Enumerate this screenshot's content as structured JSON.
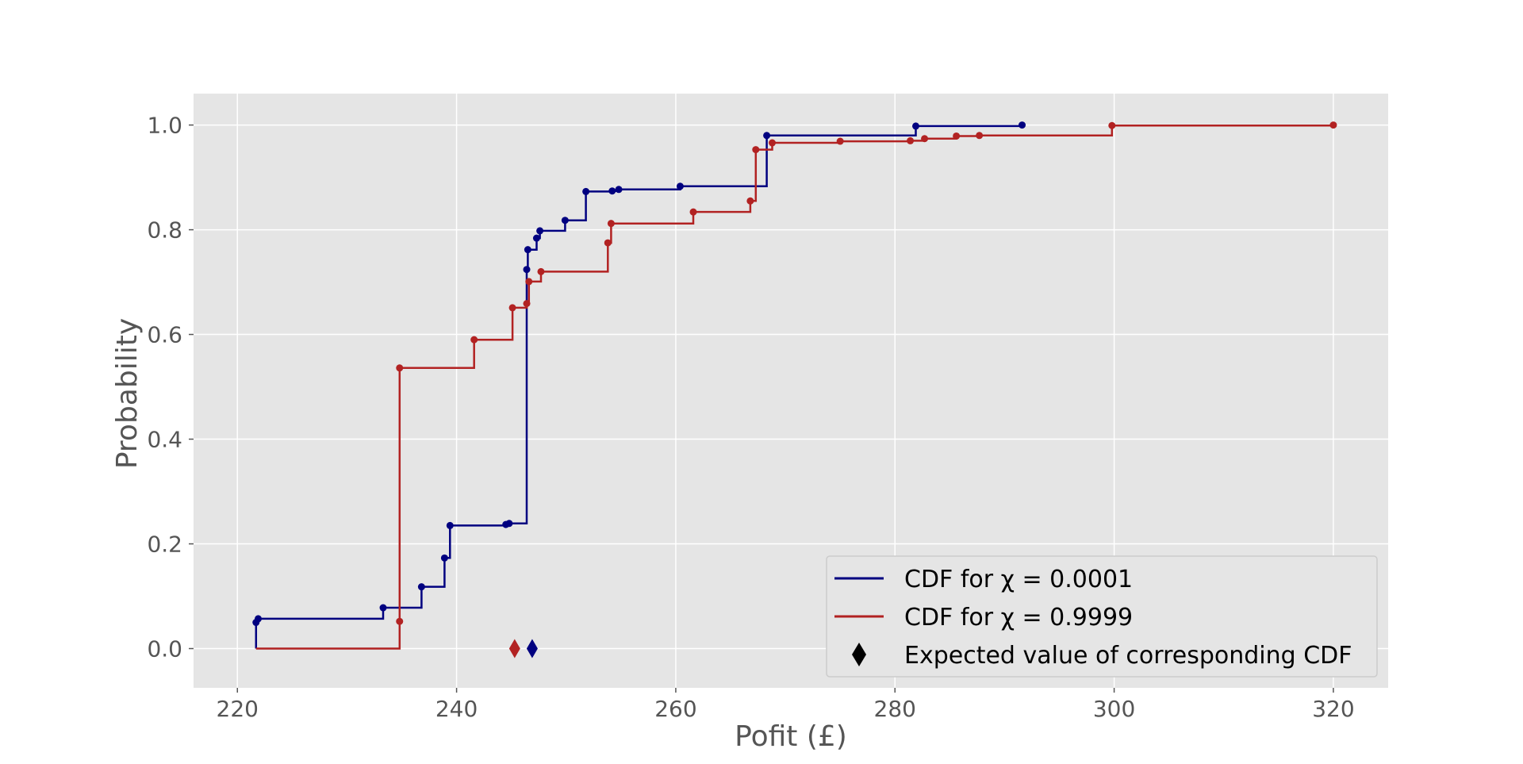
{
  "chart_data": {
    "type": "line",
    "title": "",
    "xlabel": "Pofit (£)",
    "ylabel": "Probability",
    "xlim": [
      216,
      325
    ],
    "ylim": [
      -0.075,
      1.06
    ],
    "xticks": [
      220,
      240,
      260,
      280,
      300,
      320
    ],
    "yticks": [
      0.0,
      0.2,
      0.4,
      0.6,
      0.8,
      1.0
    ],
    "xtick_labels": [
      "220",
      "240",
      "260",
      "280",
      "300",
      "320"
    ],
    "ytick_labels": [
      "0.0",
      "0.2",
      "0.4",
      "0.6",
      "0.8",
      "1.0"
    ],
    "grid": true,
    "legend_position": "lower-right",
    "series": [
      {
        "name": "CDF for χ = 0.0001",
        "color": "#000080",
        "style": "step",
        "points": [
          [
            221.7,
            0.0
          ],
          [
            221.7,
            0.05
          ],
          [
            221.9,
            0.057
          ],
          [
            233.3,
            0.078
          ],
          [
            236.8,
            0.118
          ],
          [
            238.9,
            0.173
          ],
          [
            239.4,
            0.235
          ],
          [
            244.5,
            0.237
          ],
          [
            244.8,
            0.239
          ],
          [
            246.4,
            0.724
          ],
          [
            246.5,
            0.762
          ],
          [
            247.3,
            0.784
          ],
          [
            247.6,
            0.798
          ],
          [
            249.9,
            0.818
          ],
          [
            251.8,
            0.873
          ],
          [
            254.2,
            0.874
          ],
          [
            254.8,
            0.877
          ],
          [
            260.4,
            0.883
          ],
          [
            268.3,
            0.98
          ],
          [
            281.9,
            0.998
          ],
          [
            291.6,
            1.0
          ]
        ],
        "expected_value": 246.9
      },
      {
        "name": "CDF for χ = 0.9999",
        "color": "#b22222",
        "style": "step",
        "points": [
          [
            221.7,
            0.0
          ],
          [
            234.8,
            0.052
          ],
          [
            234.8,
            0.536
          ],
          [
            241.6,
            0.59
          ],
          [
            245.1,
            0.651
          ],
          [
            246.4,
            0.659
          ],
          [
            246.6,
            0.701
          ],
          [
            247.7,
            0.72
          ],
          [
            253.8,
            0.775
          ],
          [
            254.1,
            0.812
          ],
          [
            261.6,
            0.834
          ],
          [
            266.8,
            0.855
          ],
          [
            267.3,
            0.953
          ],
          [
            268.8,
            0.966
          ],
          [
            275.0,
            0.969
          ],
          [
            281.4,
            0.97
          ],
          [
            282.7,
            0.974
          ],
          [
            285.6,
            0.979
          ],
          [
            287.7,
            0.98
          ],
          [
            299.8,
            0.999
          ],
          [
            320.0,
            1.0
          ]
        ],
        "expected_value": 245.3
      }
    ],
    "legend": [
      {
        "label": "CDF for χ = 0.0001",
        "marker": "line",
        "color": "#000080"
      },
      {
        "label": "CDF for χ = 0.9999",
        "marker": "line",
        "color": "#b22222"
      },
      {
        "label": "Expected value of corresponding CDF",
        "marker": "diamond",
        "color": "#000000"
      }
    ]
  }
}
